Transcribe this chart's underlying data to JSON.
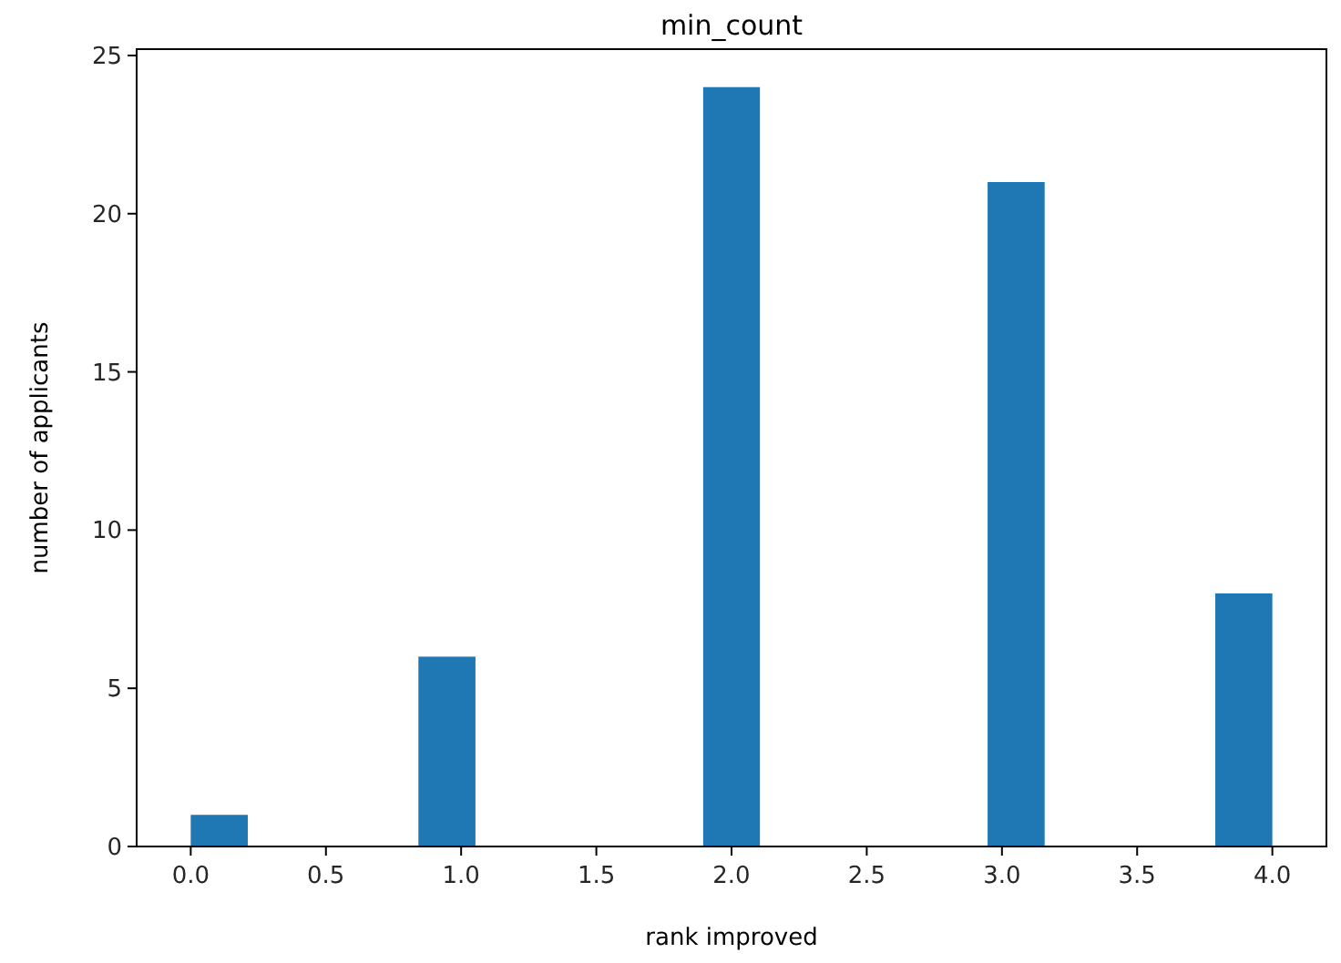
{
  "chart_data": {
    "type": "histogram",
    "title": "min_count",
    "xlabel": "rank improved",
    "ylabel": "number of applicants",
    "color": "#1f77b4",
    "bins": [
      0,
      0.211,
      0.421,
      0.632,
      0.842,
      1.053,
      1.263,
      1.474,
      1.684,
      1.895,
      2.105,
      2.316,
      2.526,
      2.737,
      2.947,
      3.158,
      3.368,
      3.579,
      3.789,
      4
    ],
    "values": [
      1,
      0,
      0,
      0,
      6,
      0,
      0,
      0,
      0,
      24,
      0,
      0,
      0,
      0,
      21,
      0,
      0,
      0,
      8
    ],
    "xlim": [
      -0.2,
      4.2
    ],
    "ylim": [
      0,
      25.2
    ],
    "xticks": [
      {
        "value": 0,
        "label": "0.0"
      },
      0.5,
      {
        "value": 1,
        "label": "1.0"
      },
      1.5,
      {
        "value": 2,
        "label": "2.0"
      },
      2.5,
      {
        "value": 3,
        "label": "3.0"
      },
      3.5,
      {
        "value": 4,
        "label": "4.0"
      }
    ],
    "yticks": [
      0,
      5,
      10,
      15,
      20,
      25
    ]
  }
}
